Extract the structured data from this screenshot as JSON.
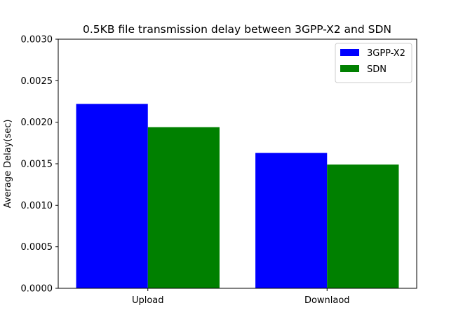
{
  "chart_data": {
    "type": "bar",
    "title": "0.5KB file transmission delay between 3GPP-X2 and SDN",
    "xlabel": "",
    "ylabel": "Average Delay(sec)",
    "categories": [
      "Upload",
      "Downlaod"
    ],
    "series": [
      {
        "name": "3GPP-X2",
        "color": "#0000ff",
        "values": [
          0.00222,
          0.00163
        ]
      },
      {
        "name": "SDN",
        "color": "#008000",
        "values": [
          0.00194,
          0.00149
        ]
      }
    ],
    "ylim": [
      0,
      0.003
    ],
    "yticks": [
      "0.0000",
      "0.0005",
      "0.0010",
      "0.0015",
      "0.0020",
      "0.0025",
      "0.0030"
    ],
    "grid": false,
    "legend_position": "top-right"
  }
}
